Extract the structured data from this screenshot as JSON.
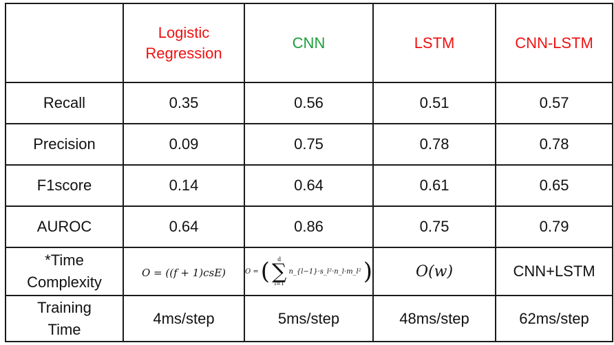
{
  "colors": {
    "red": "#ee1111",
    "green": "#1c9e3c",
    "text": "#111111",
    "border": "#1a1a1a"
  },
  "columns": [
    {
      "line1": "Logistic",
      "line2": "Regression",
      "color": "#ee1111"
    },
    {
      "line1": "CNN",
      "color": "#1c9e3c"
    },
    {
      "line1": "LSTM",
      "color": "#ee1111"
    },
    {
      "line1": "CNN-LSTM",
      "color": "#ee1111"
    }
  ],
  "rows": [
    {
      "label": "Recall",
      "values": [
        "0.35",
        "0.56",
        "0.51",
        "0.57"
      ]
    },
    {
      "label": "Precision",
      "values": [
        "0.09",
        "0.75",
        "0.78",
        "0.78"
      ]
    },
    {
      "label": "F1score",
      "values": [
        "0.14",
        "0.64",
        "0.61",
        "0.65"
      ]
    },
    {
      "label": "AUROC",
      "values": [
        "0.64",
        "0.86",
        "0.75",
        "0.79"
      ]
    }
  ],
  "time_complexity": {
    "label_line1": "*Time",
    "label_line2": "Complexity",
    "lr": "O = ((f + 1)csE)",
    "cnn_prefix": "O =",
    "cnn_sum_upper": "d",
    "cnn_sum_lower": "l=1",
    "cnn_term": "n_{l−1}·s_l²·n_l·m_l²",
    "lstm": "O(w)",
    "cnn_lstm": "CNN+LSTM"
  },
  "training_time": {
    "label_line1": "Training",
    "label_line2": "Time",
    "values": [
      "4ms/step",
      "5ms/step",
      "48ms/step",
      "62ms/step"
    ]
  }
}
